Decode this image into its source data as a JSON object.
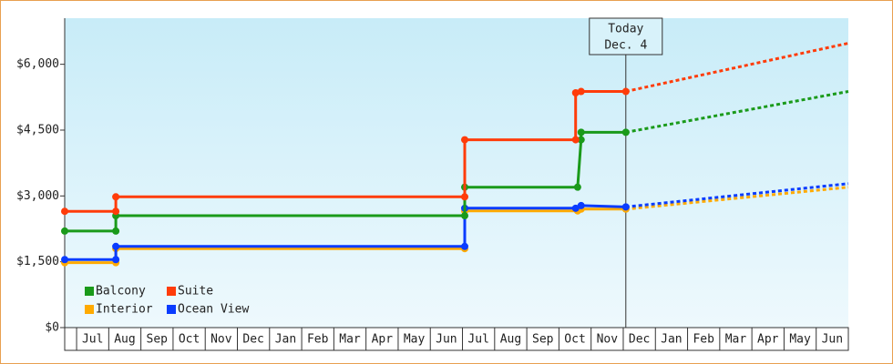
{
  "chart_data": {
    "type": "step-line",
    "categories": [
      "Jul",
      "Aug",
      "Sep",
      "Oct",
      "Nov",
      "Dec",
      "Jan",
      "Feb",
      "Mar",
      "Apr",
      "May",
      "Jun",
      "Jul",
      "Aug",
      "Sep",
      "Oct",
      "Nov",
      "Dec",
      "Jan",
      "Feb",
      "Mar",
      "Apr",
      "May",
      "Jun"
    ],
    "xlim": [
      -0.37,
      24
    ],
    "ylim": [
      0,
      7050
    ],
    "yticks": [
      {
        "value": 0,
        "label": "$0"
      },
      {
        "value": 1500,
        "label": "$1,500"
      },
      {
        "value": 3000,
        "label": "$3,000"
      },
      {
        "value": 4500,
        "label": "$4,500"
      },
      {
        "value": 6000,
        "label": "$6,000"
      }
    ],
    "legend": "lower-left",
    "today": {
      "x": 17.08,
      "lines": [
        "Today",
        "Dec. 4"
      ]
    },
    "series": [
      {
        "name": "Balcony",
        "color": "#1a9a1a",
        "x": [
          -0.37,
          1.22,
          1.22,
          12.07,
          12.07,
          15.58,
          15.69,
          15.69,
          17.08
        ],
        "values": [
          2200,
          2200,
          2550,
          2550,
          3200,
          3200,
          4280,
          4450,
          4450
        ],
        "forecast": {
          "x": [
            17.08,
            24
          ],
          "values": [
            4450,
            5380
          ]
        }
      },
      {
        "name": "Suite",
        "color": "#ff3c0a",
        "x": [
          -0.37,
          1.22,
          1.22,
          12.07,
          12.07,
          15.52,
          15.52,
          15.69,
          17.08
        ],
        "values": [
          2650,
          2650,
          2980,
          2980,
          4280,
          4280,
          5350,
          5380,
          5380
        ],
        "forecast": {
          "x": [
            17.08,
            24
          ],
          "values": [
            5380,
            6480
          ]
        }
      },
      {
        "name": "Interior",
        "color": "#ffaa00",
        "x": [
          -0.37,
          1.22,
          1.22,
          12.07,
          12.07,
          15.58,
          15.69,
          17.08
        ],
        "values": [
          1480,
          1480,
          1800,
          1800,
          2660,
          2660,
          2700,
          2700
        ],
        "forecast": {
          "x": [
            17.08,
            24
          ],
          "values": [
            2700,
            3200
          ]
        }
      },
      {
        "name": "Ocean View",
        "color": "#0a3cff",
        "x": [
          -0.37,
          1.22,
          1.22,
          12.07,
          12.07,
          15.52,
          15.69,
          17.08
        ],
        "values": [
          1550,
          1550,
          1850,
          1850,
          2720,
          2720,
          2780,
          2750
        ],
        "forecast": {
          "x": [
            17.08,
            24
          ],
          "values": [
            2750,
            3280
          ]
        }
      }
    ]
  }
}
